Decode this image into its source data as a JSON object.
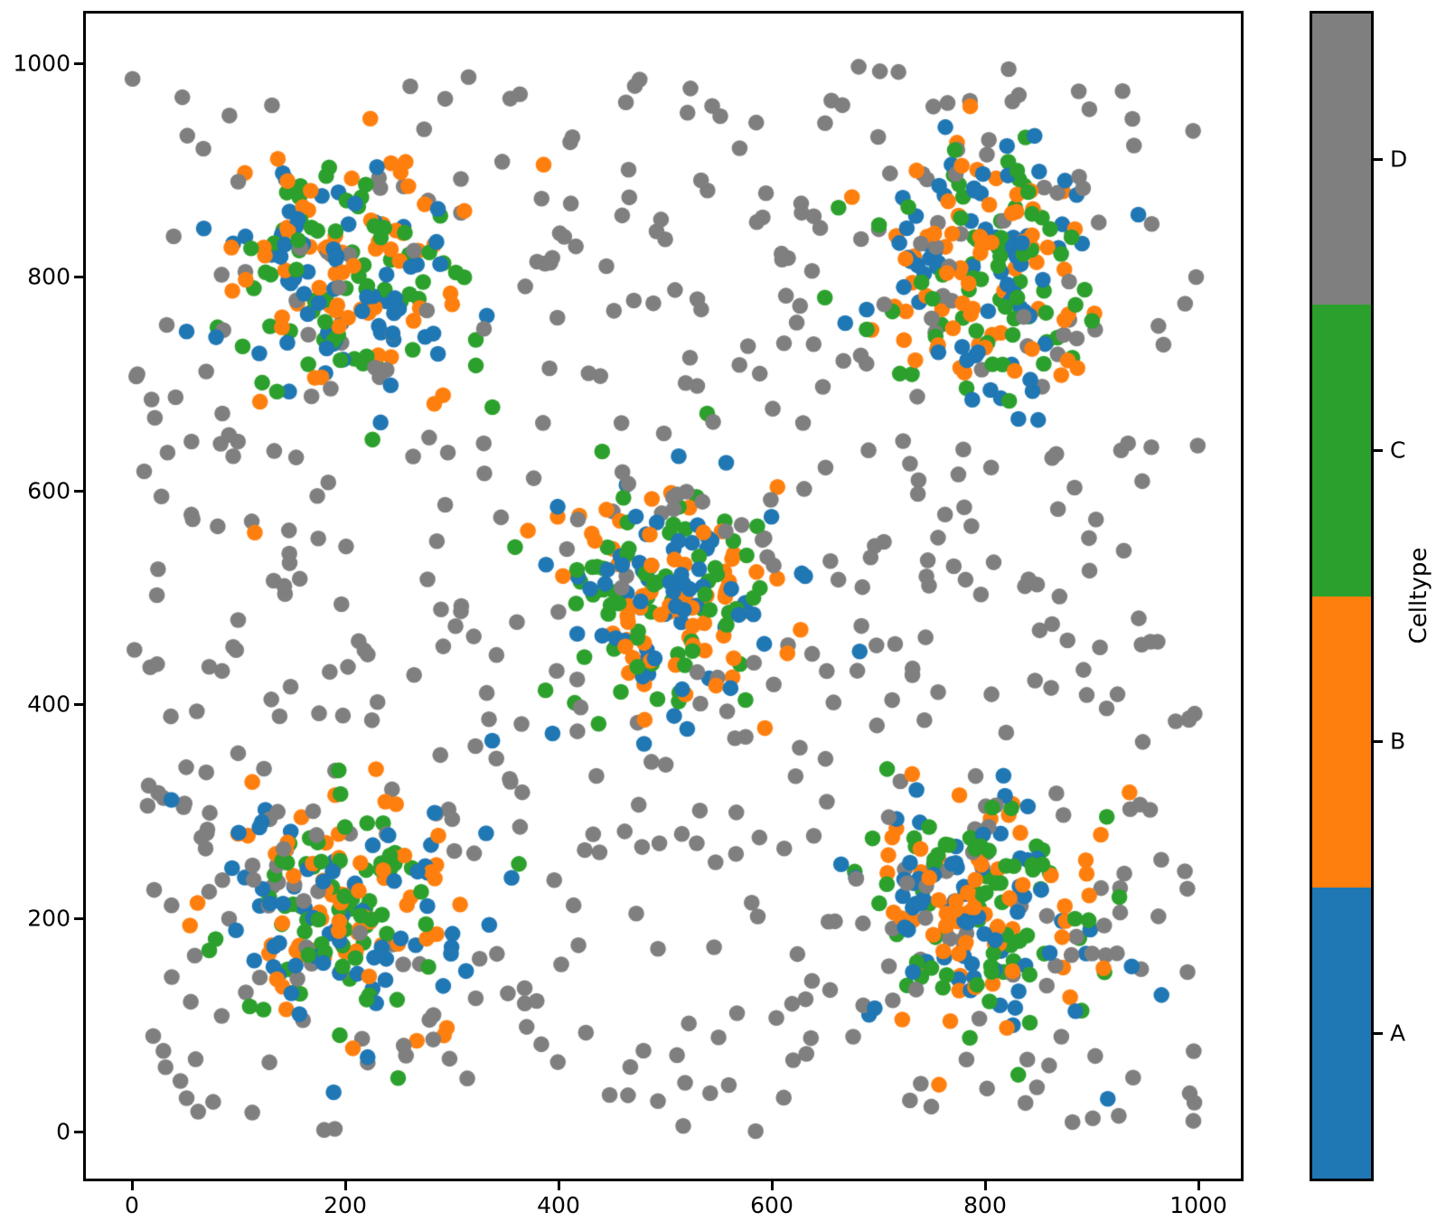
{
  "figure": {
    "background": "#ffffff"
  },
  "axes": {
    "x_ticks": [
      "0",
      "200",
      "400",
      "600",
      "800",
      "1000"
    ],
    "y_ticks": [
      "0",
      "200",
      "400",
      "600",
      "800",
      "1000"
    ]
  },
  "colorbar": {
    "title": "Celltype",
    "entries": [
      {
        "label": "A",
        "color": "#1f77b4"
      },
      {
        "label": "B",
        "color": "#ff7f0e"
      },
      {
        "label": "C",
        "color": "#2ca02c"
      },
      {
        "label": "D",
        "color": "#7f7f7f"
      }
    ]
  },
  "chart_data": {
    "type": "scatter",
    "title": "",
    "xlabel": "",
    "ylabel": "",
    "xlim": [
      -43.2,
      1039.8
    ],
    "ylim": [
      -44.0,
      1046.6
    ],
    "x_tick_values": [
      0,
      200,
      400,
      600,
      800,
      1000
    ],
    "y_tick_values": [
      0,
      200,
      400,
      600,
      800,
      1000
    ],
    "grid": false,
    "legend": {
      "title": "Celltype",
      "style": "discrete-colorbar",
      "position": "right",
      "entries_bottom_to_top": [
        "A",
        "B",
        "C",
        "D"
      ]
    },
    "point_radius_px": 8.8,
    "seed": 1337,
    "series": [
      {
        "name": "A",
        "color": "#1f77b4",
        "kind": "gaussian_clusters",
        "centers": [
          [
            200,
            800
          ],
          [
            800,
            800
          ],
          [
            500,
            500
          ],
          [
            200,
            200
          ],
          [
            800,
            200
          ]
        ],
        "std": 57,
        "points_per_cluster": 70
      },
      {
        "name": "B",
        "color": "#ff7f0e",
        "kind": "gaussian_clusters",
        "centers": [
          [
            200,
            800
          ],
          [
            800,
            800
          ],
          [
            500,
            500
          ],
          [
            200,
            200
          ],
          [
            800,
            200
          ]
        ],
        "std": 57,
        "points_per_cluster": 70
      },
      {
        "name": "C",
        "color": "#2ca02c",
        "kind": "gaussian_clusters",
        "centers": [
          [
            200,
            800
          ],
          [
            800,
            800
          ],
          [
            500,
            500
          ],
          [
            200,
            200
          ],
          [
            800,
            200
          ]
        ],
        "std": 57,
        "points_per_cluster": 70
      },
      {
        "name": "D",
        "color": "#7f7f7f",
        "kind": "uniform",
        "x_range": [
          0,
          1000
        ],
        "y_range": [
          0,
          1000
        ],
        "count": 600
      }
    ]
  }
}
